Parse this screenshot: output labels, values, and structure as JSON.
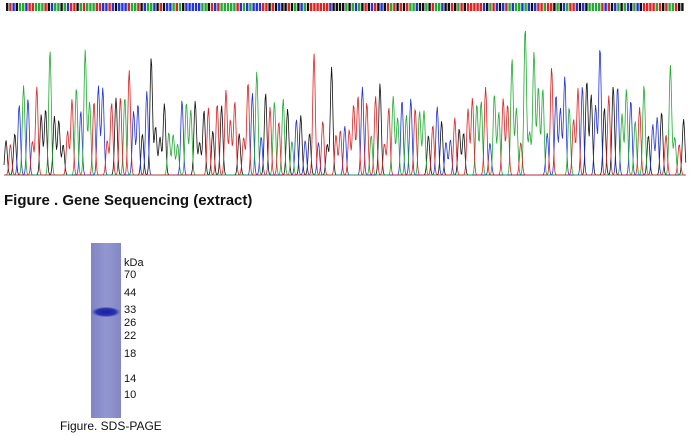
{
  "chromatogram": {
    "caption": "Figure . Gene Sequencing (extract)"
  },
  "gel": {
    "unit": "kDa",
    "markers": [
      "70",
      "44",
      "33",
      "26",
      "22",
      "18",
      "14",
      "10"
    ],
    "caption": "Figure. SDS-PAGE"
  }
}
